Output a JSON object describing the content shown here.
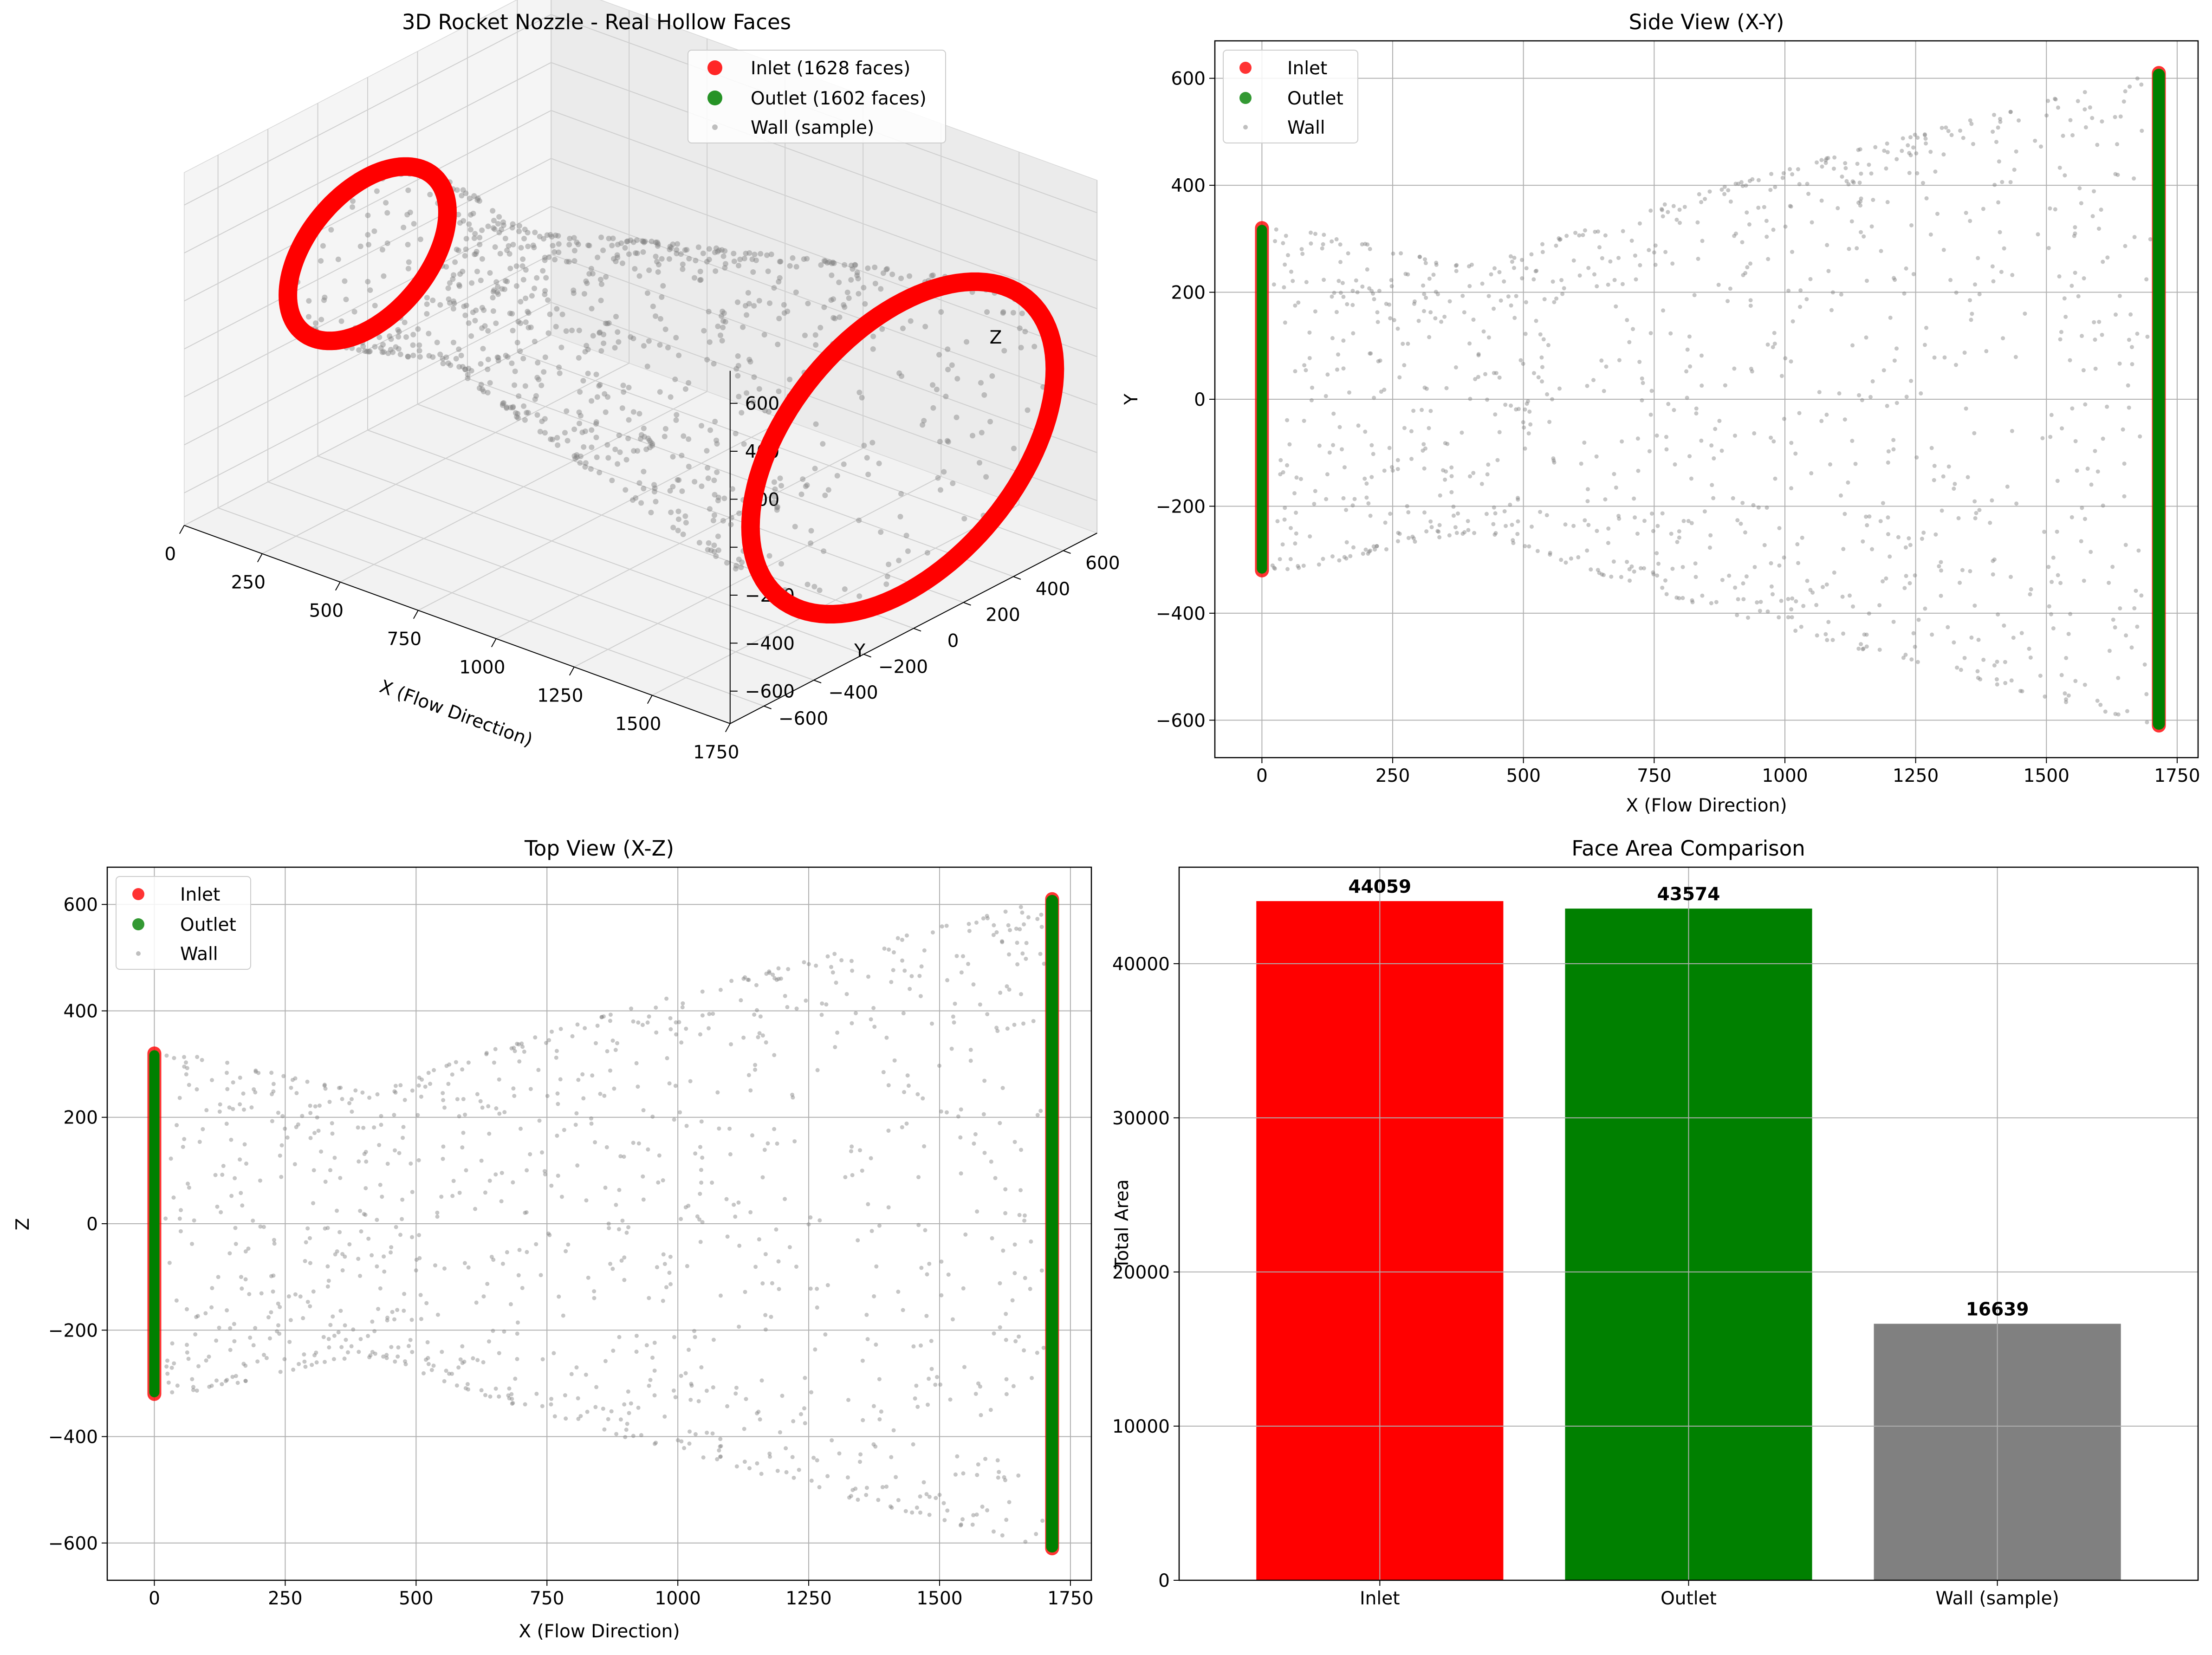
{
  "chart_data": [
    {
      "type": "scatter",
      "projection": "3d",
      "title": "3D Rocket Nozzle - Real Hollow Faces",
      "xlabel": "X (Flow Direction)",
      "ylabel": "Y",
      "zlabel": "Z",
      "xlim": [
        0,
        1750
      ],
      "ylim": [
        -600,
        600
      ],
      "zlim": [
        -600,
        600
      ],
      "xticks": [
        "0",
        "250",
        "500",
        "750",
        "1000",
        "1250",
        "1500",
        "1750"
      ],
      "yticks": [
        "−600",
        "−400",
        "−200",
        "0",
        "200",
        "400",
        "600"
      ],
      "zticks": [
        "−600",
        "−400",
        "−200",
        "0",
        "200",
        "400",
        "600"
      ],
      "legend": [
        "Inlet (1628 faces)",
        "Outlet (1602 faces)",
        "Wall (sample)"
      ],
      "legend_position": "upper right",
      "series": [
        {
          "name": "Inlet (1628 faces)",
          "color": "#ff0000",
          "x": 0,
          "radius": 320
        },
        {
          "name": "Outlet (1602 faces)",
          "color": "#008000",
          "x": 1715,
          "radius": 610
        },
        {
          "name": "Wall (sample)",
          "color": "#808080"
        }
      ],
      "grid": true
    },
    {
      "type": "scatter",
      "title": "Side View (X-Y)",
      "xlabel": "X (Flow Direction)",
      "ylabel": "Y",
      "xlim": [
        -90,
        1790
      ],
      "ylim": [
        -670,
        670
      ],
      "xticks": [
        0,
        250,
        500,
        750,
        1000,
        1250,
        1500,
        1750
      ],
      "xtick_labels": [
        "0",
        "250",
        "500",
        "750",
        "1000",
        "1250",
        "1500",
        "1750"
      ],
      "yticks": [
        -600,
        -400,
        -200,
        0,
        200,
        400,
        600
      ],
      "ytick_labels": [
        "−600",
        "−400",
        "−200",
        "0",
        "200",
        "400",
        "600"
      ],
      "legend": [
        "Inlet",
        "Outlet",
        "Wall"
      ],
      "legend_position": "upper left",
      "series": [
        {
          "name": "Inlet",
          "color": "#ff0000",
          "x": 0,
          "range": [
            -320,
            320
          ]
        },
        {
          "name": "Outlet",
          "color": "#008000",
          "x": 1715,
          "range": [
            -610,
            610
          ]
        },
        {
          "name": "Wall",
          "color": "#808080"
        }
      ],
      "grid": true
    },
    {
      "type": "scatter",
      "title": "Top View (X-Z)",
      "xlabel": "X (Flow Direction)",
      "ylabel": "Z",
      "xlim": [
        -90,
        1790
      ],
      "ylim": [
        -670,
        670
      ],
      "xticks": [
        0,
        250,
        500,
        750,
        1000,
        1250,
        1500,
        1750
      ],
      "xtick_labels": [
        "0",
        "250",
        "500",
        "750",
        "1000",
        "1250",
        "1500",
        "1750"
      ],
      "yticks": [
        -600,
        -400,
        -200,
        0,
        200,
        400,
        600
      ],
      "ytick_labels": [
        "−600",
        "−400",
        "−200",
        "0",
        "200",
        "400",
        "600"
      ],
      "legend": [
        "Inlet",
        "Outlet",
        "Wall"
      ],
      "legend_position": "upper left",
      "series": [
        {
          "name": "Inlet",
          "color": "#ff0000",
          "x": 0,
          "range": [
            -320,
            320
          ]
        },
        {
          "name": "Outlet",
          "color": "#008000",
          "x": 1715,
          "range": [
            -610,
            610
          ]
        },
        {
          "name": "Wall",
          "color": "#808080"
        }
      ],
      "grid": true
    },
    {
      "type": "bar",
      "title": "Face Area Comparison",
      "xlabel": "",
      "ylabel": "Total Area",
      "categories": [
        "Inlet",
        "Outlet",
        "Wall (sample)"
      ],
      "values": [
        44059,
        43574,
        16639
      ],
      "value_labels": [
        "44059",
        "43574",
        "16639"
      ],
      "colors": [
        "#ff0000",
        "#008000",
        "#808080"
      ],
      "ylim": [
        0,
        46260
      ],
      "yticks": [
        0,
        10000,
        20000,
        30000,
        40000
      ],
      "ytick_labels": [
        "0",
        "10000",
        "20000",
        "30000",
        "40000"
      ],
      "grid": true
    }
  ]
}
